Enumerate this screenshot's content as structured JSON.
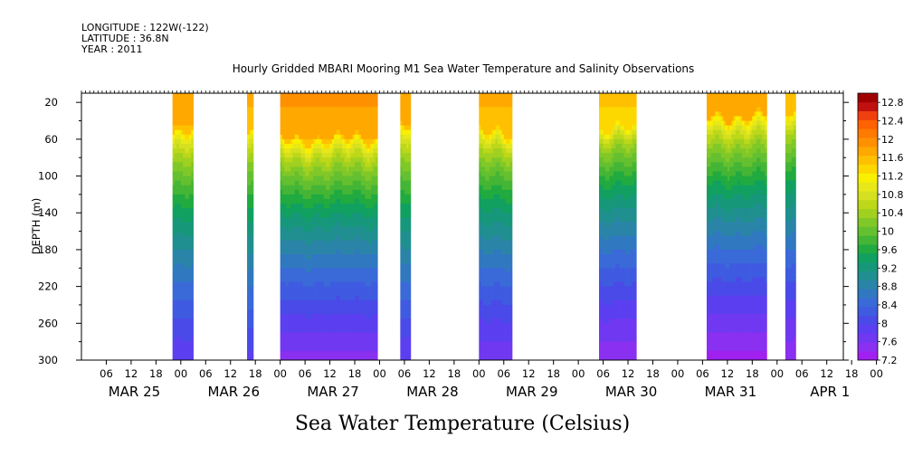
{
  "header": {
    "longitude": "LONGITUDE : 122W(-122)",
    "latitude": "LATITUDE : 36.8N",
    "year": "YEAR : 2011"
  },
  "chart_data": {
    "type": "heatmap",
    "title": "Hourly Gridded MBARI Mooring M1 Sea Water Temperature and Salinity Observations",
    "xlabel": "Sea Water Temperature (Celsius)",
    "ylabel": "DEPTH (m)",
    "x_hour_ticks": [
      "06",
      "12",
      "18",
      "00",
      "06",
      "12",
      "18",
      "00",
      "06",
      "12",
      "18",
      "00",
      "06",
      "12",
      "18",
      "00",
      "06",
      "12",
      "18",
      "00",
      "06",
      "12",
      "18",
      "00",
      "06",
      "12",
      "18",
      "00",
      "06",
      "12",
      "18",
      "00"
    ],
    "x_day_labels": [
      "MAR 25",
      "MAR 26",
      "MAR 27",
      "MAR 28",
      "MAR 29",
      "MAR 30",
      "MAR 31",
      "APR  1"
    ],
    "x_range_hours": [
      0,
      184
    ],
    "ylim": [
      300,
      10
    ],
    "y_ticks": [
      20,
      60,
      100,
      140,
      180,
      220,
      260,
      300
    ],
    "colorbar": {
      "labels": [
        "12.8",
        "12.4",
        "12",
        "11.6",
        "11.2",
        "10.8",
        "10.4",
        "10",
        "9.6",
        "9.2",
        "8.8",
        "8.4",
        "8",
        "7.6",
        "7.2"
      ],
      "levels": [
        7.2,
        7.4,
        7.6,
        7.8,
        8.0,
        8.2,
        8.4,
        8.6,
        8.8,
        9.0,
        9.2,
        9.4,
        9.6,
        9.8,
        10.0,
        10.2,
        10.4,
        10.6,
        10.8,
        11.0,
        11.2,
        11.4,
        11.6,
        11.8,
        12.0,
        12.2,
        12.4,
        12.6,
        12.8,
        13.0
      ],
      "colors": [
        "#a020f0",
        "#8a30f0",
        "#7038f0",
        "#5b3ff0",
        "#4a4ae8",
        "#3f5be0",
        "#3a6ad8",
        "#3078c0",
        "#2a84a8",
        "#208f90",
        "#17977a",
        "#11a060",
        "#20aa40",
        "#45b535",
        "#65c030",
        "#80c828",
        "#a0d020",
        "#bcd818",
        "#d4e020",
        "#e8e818",
        "#f8f000",
        "#fcd800",
        "#fec000",
        "#ffa800",
        "#ff9000",
        "#ff7a00",
        "#ff6200",
        "#f04010",
        "#c01010",
        "#a00000"
      ]
    },
    "data_segments": [
      {
        "start_hour": 22,
        "end_hour": 27,
        "surface_temp": 12.0,
        "bottom_temp": 7.8,
        "thermocline_depth": 65
      },
      {
        "start_hour": 40,
        "end_hour": 41.5,
        "surface_temp": 11.9,
        "bottom_temp": 7.9,
        "thermocline_depth": 60
      },
      {
        "start_hour": 48,
        "end_hour": 71.5,
        "surface_temp": 12.1,
        "bottom_temp": 7.5,
        "thermocline_depth": 75
      },
      {
        "start_hour": 77,
        "end_hour": 79.5,
        "surface_temp": 12.0,
        "bottom_temp": 7.8,
        "thermocline_depth": 60
      },
      {
        "start_hour": 96,
        "end_hour": 104,
        "surface_temp": 11.9,
        "bottom_temp": 7.6,
        "thermocline_depth": 70
      },
      {
        "start_hour": 125,
        "end_hour": 134,
        "surface_temp": 11.7,
        "bottom_temp": 7.4,
        "thermocline_depth": 65
      },
      {
        "start_hour": 151,
        "end_hour": 165.5,
        "surface_temp": 12.0,
        "bottom_temp": 7.3,
        "thermocline_depth": 50
      },
      {
        "start_hour": 170,
        "end_hour": 172.5,
        "surface_temp": 11.8,
        "bottom_temp": 7.4,
        "thermocline_depth": 45
      }
    ]
  }
}
